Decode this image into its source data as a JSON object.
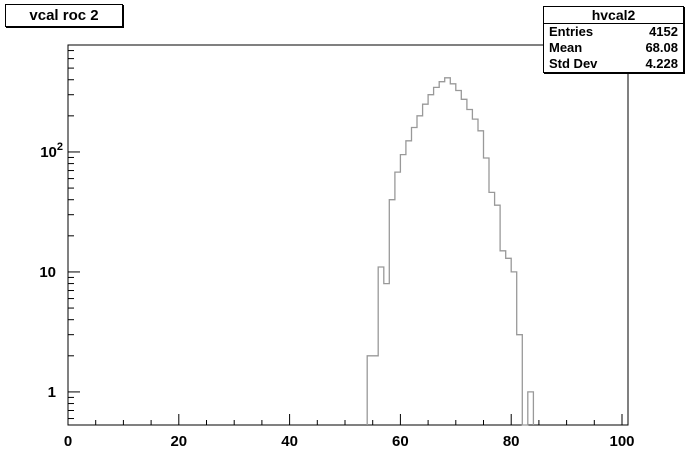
{
  "title": {
    "text": "vcal roc 2"
  },
  "stats": {
    "title": "hvcal2",
    "rows": [
      {
        "label": "Entries",
        "value": "4152"
      },
      {
        "label": "Mean",
        "value": "68.08"
      },
      {
        "label": "Std Dev",
        "value": "4.228"
      }
    ]
  },
  "chart_data": {
    "type": "bar",
    "subtype": "step-histogram",
    "histogram_name": "hvcal2",
    "title": "vcal roc 2",
    "entries": 4152,
    "mean": 68.08,
    "std_dev": 4.228,
    "x_range": [
      0,
      101
    ],
    "y_scale": "log",
    "y_range": [
      0.53,
      779
    ],
    "grid": false,
    "legend": false,
    "bin_width": 1,
    "first_bin": 54,
    "counts": [
      2,
      2,
      11,
      8,
      40,
      68,
      95,
      124,
      160,
      200,
      250,
      300,
      345,
      385,
      415,
      370,
      325,
      275,
      226,
      188,
      150,
      89,
      46,
      36,
      15,
      13,
      10,
      3,
      0,
      1
    ],
    "x_ticks_major": [
      0,
      20,
      40,
      60,
      80,
      100
    ],
    "x_minor_step": 5,
    "y_ticks_major": [
      {
        "value": 1,
        "label": "1",
        "exponent": ""
      },
      {
        "value": 10,
        "label": "10",
        "exponent": ""
      },
      {
        "value": 100,
        "label": "10",
        "exponent": "2"
      }
    ],
    "line_color": "#999999",
    "axis_color": "#000000",
    "background_color": "#ffffff"
  }
}
